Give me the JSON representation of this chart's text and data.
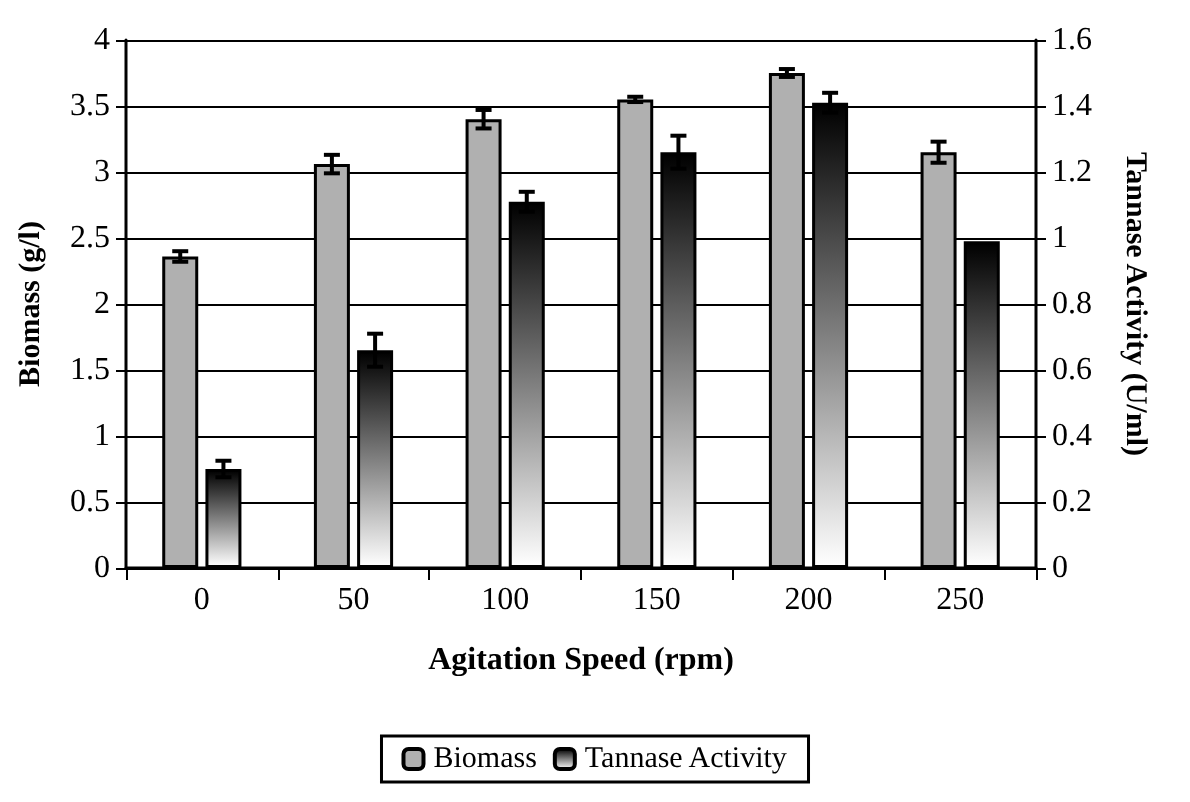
{
  "chart_data": {
    "type": "bar",
    "xlabel": "Agitation Speed (rpm)",
    "ylabel": "Biomass (g/l)",
    "y2label": "Tannase Activity (U/ml)",
    "categories": [
      "0",
      "50",
      "100",
      "150",
      "200",
      "250"
    ],
    "series": [
      {
        "name": "Biomass",
        "color": "#b0b0b0",
        "values": [
          2.36,
          3.06,
          3.4,
          3.55,
          3.75,
          3.15
        ],
        "errors": [
          0.04,
          0.07,
          0.07,
          0.02,
          0.03,
          0.08
        ]
      },
      {
        "name": "Tannase Activity",
        "color": "#000000",
        "axis": "y2",
        "values": [
          0.3,
          0.66,
          1.11,
          1.26,
          1.41,
          0.99
        ],
        "errors": [
          0.025,
          0.05,
          0.03,
          0.05,
          0.03,
          null
        ]
      }
    ],
    "ylim": [
      0,
      4
    ],
    "yticks": [
      0,
      0.5,
      1,
      1.5,
      2,
      2.5,
      3,
      3.5,
      4
    ],
    "y2lim": [
      0,
      1.6
    ],
    "y2ticks": [
      0,
      0.2,
      0.4,
      0.6,
      0.8,
      1,
      1.2,
      1.4,
      1.6
    ],
    "grid": "y",
    "legend": "bottom"
  }
}
